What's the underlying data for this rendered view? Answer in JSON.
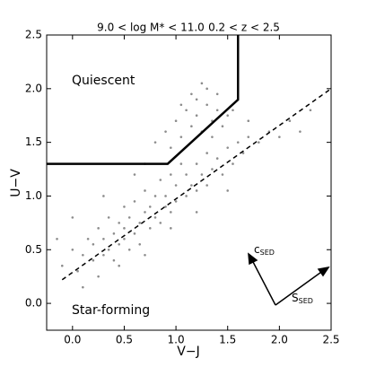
{
  "chart_data": {
    "type": "scatter",
    "title": "9.0 < log M* < 11.0",
    "subtitle": "0.2 < z < 2.5",
    "x_label": "V−J",
    "y_label": "U−V",
    "xlim": [
      -0.25,
      2.5
    ],
    "ylim": [
      -0.25,
      2.5
    ],
    "xticks": [
      {
        "value": 0,
        "label": "0.0"
      },
      {
        "value": 0.5,
        "label": "0.5"
      },
      {
        "value": 1,
        "label": "1.0"
      },
      {
        "value": 1.5,
        "label": "1.5"
      },
      {
        "value": 2,
        "label": "2.0"
      },
      {
        "value": 2.5,
        "label": "2.5"
      }
    ],
    "yticks": [
      {
        "value": 0,
        "label": "0.0"
      },
      {
        "value": 0.5,
        "label": "0.5"
      },
      {
        "value": 1,
        "label": "1.0"
      },
      {
        "value": 1.5,
        "label": "1.5"
      },
      {
        "value": 2,
        "label": "2.0"
      },
      {
        "value": 2.5,
        "label": "2.5"
      }
    ],
    "color": "#8c8c8c",
    "x": [
      -0.1,
      0.0,
      0.05,
      0.1,
      0.15,
      0.2,
      0.2,
      0.25,
      0.3,
      0.3,
      0.35,
      0.35,
      0.4,
      0.4,
      0.45,
      0.45,
      0.5,
      0.5,
      0.5,
      0.55,
      0.55,
      0.6,
      0.6,
      0.65,
      0.65,
      0.7,
      0.7,
      0.75,
      0.75,
      0.8,
      0.8,
      0.85,
      0.85,
      0.9,
      0.9,
      0.95,
      0.95,
      1.0,
      1.0,
      1.05,
      1.1,
      1.1,
      1.15,
      1.2,
      1.2,
      1.25,
      1.3,
      1.3,
      1.35,
      1.4,
      1.45,
      1.5,
      1.55,
      1.6,
      1.65,
      1.7,
      1.8,
      1.9,
      2.0,
      2.1,
      2.2,
      0.25,
      0.45,
      0.7,
      0.95,
      1.2,
      1.5,
      0.1,
      0.8,
      0.9,
      1.0,
      1.05,
      1.1,
      1.15,
      1.2,
      1.2,
      1.25,
      1.3,
      1.3,
      1.35,
      1.4,
      1.4,
      1.45,
      1.5,
      1.15,
      1.05,
      0.95,
      1.55,
      1.25,
      1.35,
      0.6,
      0.7,
      1.7,
      2.3,
      -0.15,
      0.0,
      0.3
    ],
    "y": [
      0.35,
      0.5,
      0.3,
      0.45,
      0.6,
      0.4,
      0.55,
      0.7,
      0.45,
      0.6,
      0.8,
      0.5,
      0.65,
      0.4,
      0.75,
      0.55,
      0.9,
      0.6,
      0.7,
      0.5,
      0.8,
      0.65,
      0.95,
      0.75,
      0.55,
      0.85,
      1.05,
      0.7,
      0.9,
      1.0,
      0.8,
      1.15,
      0.75,
      1.0,
      0.9,
      1.2,
      0.85,
      1.1,
      0.95,
      1.3,
      1.0,
      1.2,
      1.1,
      1.3,
      1.05,
      1.2,
      1.4,
      1.1,
      1.25,
      1.35,
      1.2,
      1.45,
      1.3,
      1.5,
      1.4,
      1.55,
      1.5,
      1.6,
      1.55,
      1.7,
      1.6,
      0.25,
      0.35,
      0.45,
      0.7,
      0.85,
      1.05,
      0.15,
      1.5,
      1.6,
      1.7,
      1.55,
      1.8,
      1.65,
      1.9,
      1.75,
      1.6,
      1.85,
      2.0,
      1.7,
      1.8,
      1.95,
      1.65,
      1.75,
      1.95,
      1.85,
      1.45,
      1.8,
      2.05,
      1.55,
      1.2,
      1.3,
      1.7,
      1.8,
      0.6,
      0.8,
      1.0
    ],
    "lines": [
      {
        "x": [
          -0.25,
          0.92,
          1.6,
          1.6
        ],
        "y": [
          1.3,
          1.3,
          1.898,
          2.5
        ],
        "style": "solid"
      },
      {
        "x": [
          -0.1,
          2.5
        ],
        "y": [
          0.22,
          2.0
        ],
        "style": "dashed"
      }
    ],
    "annotations": {
      "quiescent": "Quiescent",
      "star_forming": "Star-forming",
      "arrow_c": {
        "main": "c",
        "sub": "SED"
      },
      "arrow_s": {
        "main": "S",
        "sub": "SED"
      }
    }
  }
}
